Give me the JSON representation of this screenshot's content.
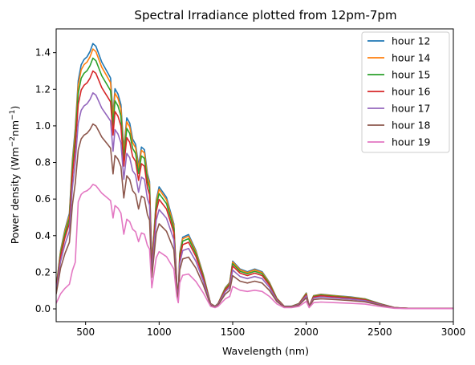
{
  "chart_data": {
    "type": "line",
    "title": "Spectral Irradiance plotted from 12pm-7pm",
    "xlabel": "Wavelength (nm)",
    "ylabel_main": "Power density (Wm",
    "ylabel_sup1": "−2",
    "ylabel_mid": "nm",
    "ylabel_sup2": "−1",
    "ylabel_end": ")",
    "xlim": [
      300,
      3000
    ],
    "ylim": [
      -0.07,
      1.53
    ],
    "xticks": [
      500,
      1000,
      1500,
      2000,
      2500,
      3000
    ],
    "xtick_labels": [
      "500",
      "1000",
      "1500",
      "2000",
      "2500",
      "3000"
    ],
    "yticks": [
      0.0,
      0.2,
      0.4,
      0.6,
      0.8,
      1.0,
      1.2,
      1.4
    ],
    "ytick_labels": [
      "0.0",
      "0.2",
      "0.4",
      "0.6",
      "0.8",
      "1.0",
      "1.2",
      "1.4"
    ],
    "grid": false,
    "legend_position": "top-right",
    "x": [
      300,
      330,
      360,
      390,
      410,
      430,
      450,
      470,
      490,
      510,
      530,
      550,
      570,
      590,
      610,
      630,
      650,
      670,
      687,
      700,
      720,
      740,
      760,
      780,
      800,
      820,
      840,
      860,
      880,
      900,
      920,
      935,
      950,
      980,
      1000,
      1050,
      1100,
      1120,
      1130,
      1140,
      1160,
      1200,
      1250,
      1300,
      1350,
      1380,
      1400,
      1450,
      1480,
      1500,
      1550,
      1600,
      1650,
      1700,
      1750,
      1800,
      1850,
      1900,
      1950,
      2000,
      2020,
      2050,
      2100,
      2200,
      2300,
      2400,
      2500,
      2600,
      2700,
      2800,
      2900,
      3000
    ],
    "shape": [
      0.08,
      0.22,
      0.3,
      0.36,
      0.56,
      0.68,
      0.86,
      0.92,
      0.94,
      0.95,
      0.97,
      1.0,
      0.99,
      0.96,
      0.93,
      0.91,
      0.89,
      0.87,
      0.73,
      0.83,
      0.81,
      0.77,
      0.6,
      0.72,
      0.7,
      0.64,
      0.62,
      0.54,
      0.61,
      0.6,
      0.51,
      0.48,
      0.17,
      0.41,
      0.46,
      0.42,
      0.32,
      0.1,
      0.05,
      0.21,
      0.27,
      0.28,
      0.22,
      0.13,
      0.02,
      0.01,
      0.02,
      0.08,
      0.1,
      0.18,
      0.15,
      0.14,
      0.15,
      0.14,
      0.1,
      0.04,
      0.01,
      0.01,
      0.02,
      0.06,
      0.01,
      0.05,
      0.055,
      0.05,
      0.045,
      0.038,
      0.02,
      0.005,
      0.002,
      0.002,
      0.002,
      0.002
    ],
    "series": [
      {
        "name": "hour 12",
        "peak": 1.45,
        "color": "#1f77b4"
      },
      {
        "name": "hour 14",
        "peak": 1.42,
        "color": "#ff7f0e"
      },
      {
        "name": "hour 15",
        "peak": 1.37,
        "color": "#2ca02c"
      },
      {
        "name": "hour 16",
        "peak": 1.3,
        "color": "#d62728"
      },
      {
        "name": "hour 17",
        "peak": 1.18,
        "color": "#9467bd"
      },
      {
        "name": "hour 18",
        "peak": 1.01,
        "color": "#8c564b"
      },
      {
        "name": "hour 19",
        "peak": 0.68,
        "color": "#e377c2"
      }
    ]
  }
}
